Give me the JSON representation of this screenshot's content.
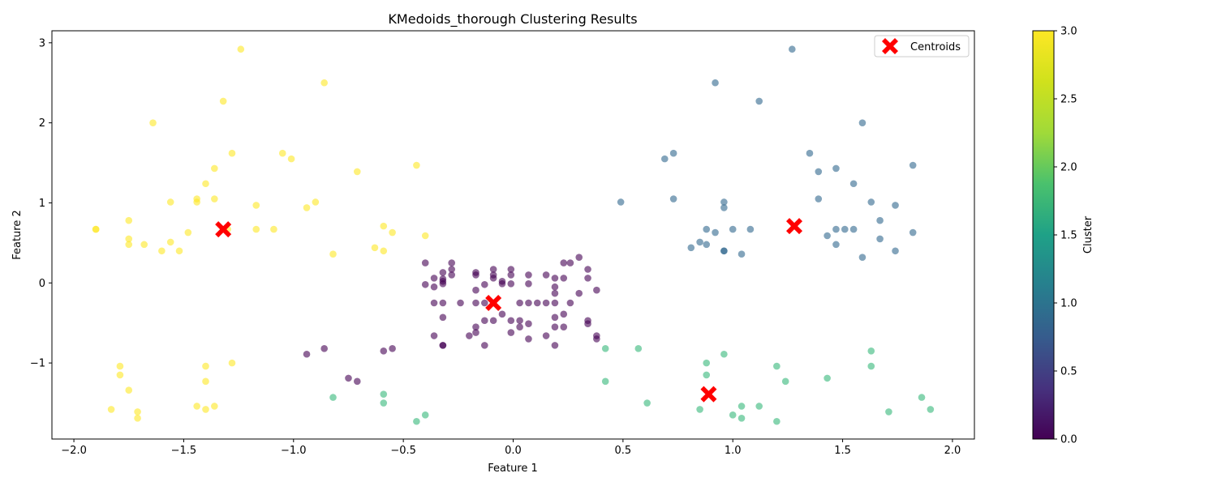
{
  "chart_data": {
    "type": "scatter",
    "title": "KMedoids_thorough Clustering Results",
    "xlabel": "Feature 1",
    "ylabel": "Feature 2",
    "xlim": [
      -2.1,
      2.1
    ],
    "ylim": [
      -1.95,
      3.15
    ],
    "xticks": [
      -2.0,
      -1.5,
      -1.0,
      -0.5,
      0.0,
      0.5,
      1.0,
      1.5,
      2.0
    ],
    "xtick_labels": [
      "−2.0",
      "−1.5",
      "−1.0",
      "−0.5",
      "0.0",
      "0.5",
      "1.0",
      "1.5",
      "2.0"
    ],
    "yticks": [
      -1,
      0,
      1,
      2,
      3
    ],
    "ytick_labels": [
      "−1",
      "0",
      "1",
      "2",
      "3"
    ],
    "grid": false,
    "legend": {
      "position": "top-right",
      "entries": [
        "Centroids"
      ]
    },
    "colorbar": {
      "label": "Cluster",
      "range": [
        0.0,
        3.0
      ],
      "ticks": [
        0.0,
        0.5,
        1.0,
        1.5,
        2.0,
        2.5,
        3.0
      ],
      "tick_labels": [
        "0.0",
        "0.5",
        "1.0",
        "1.5",
        "2.0",
        "2.5",
        "3.0"
      ]
    },
    "colors": {
      "cluster_0": "#440154",
      "cluster_1": "#31688e",
      "cluster_2": "#35b779",
      "cluster_3": "#fde725",
      "centroid": "#ff0000"
    },
    "series": [
      {
        "name": "Cluster 3",
        "cluster": 3,
        "points": [
          [
            -1.9,
            0.67
          ],
          [
            -1.9,
            0.67
          ],
          [
            -1.75,
            0.78
          ],
          [
            -1.75,
            0.55
          ],
          [
            -1.75,
            0.48
          ],
          [
            -1.68,
            0.48
          ],
          [
            -1.64,
            2.0
          ],
          [
            -1.6,
            0.4
          ],
          [
            -1.56,
            1.01
          ],
          [
            -1.56,
            0.51
          ],
          [
            -1.52,
            0.4
          ],
          [
            -1.48,
            0.63
          ],
          [
            -1.44,
            1.05
          ],
          [
            -1.44,
            1.01
          ],
          [
            -1.4,
            1.24
          ],
          [
            -1.36,
            1.43
          ],
          [
            -1.36,
            1.05
          ],
          [
            -1.32,
            2.27
          ],
          [
            -1.32,
            0.67
          ],
          [
            -1.3,
            0.67
          ],
          [
            -1.28,
            1.62
          ],
          [
            -1.24,
            2.92
          ],
          [
            -1.17,
            0.97
          ],
          [
            -1.17,
            0.67
          ],
          [
            -1.09,
            0.67
          ],
          [
            -1.05,
            1.62
          ],
          [
            -1.01,
            1.55
          ],
          [
            -0.94,
            0.94
          ],
          [
            -0.9,
            1.01
          ],
          [
            -0.86,
            2.5
          ],
          [
            -0.82,
            0.36
          ],
          [
            -0.71,
            1.39
          ],
          [
            -0.63,
            0.44
          ],
          [
            -0.59,
            0.71
          ],
          [
            -0.59,
            0.4
          ],
          [
            -0.55,
            0.63
          ],
          [
            -0.44,
            1.47
          ],
          [
            -0.4,
            0.59
          ],
          [
            -1.79,
            -1.04
          ],
          [
            -1.79,
            -1.15
          ],
          [
            -1.75,
            -1.34
          ],
          [
            -1.83,
            -1.58
          ],
          [
            -1.71,
            -1.61
          ],
          [
            -1.71,
            -1.69
          ],
          [
            -1.44,
            -1.54
          ],
          [
            -1.4,
            -1.58
          ],
          [
            -1.36,
            -1.54
          ],
          [
            -1.4,
            -1.04
          ],
          [
            -1.4,
            -1.23
          ],
          [
            -1.28,
            -1.0
          ]
        ]
      },
      {
        "name": "Cluster 1",
        "cluster": 1,
        "points": [
          [
            0.49,
            1.01
          ],
          [
            0.69,
            1.55
          ],
          [
            0.73,
            1.62
          ],
          [
            0.73,
            1.05
          ],
          [
            0.81,
            0.44
          ],
          [
            0.85,
            0.51
          ],
          [
            0.88,
            0.67
          ],
          [
            0.88,
            0.48
          ],
          [
            0.92,
            2.5
          ],
          [
            0.92,
            0.63
          ],
          [
            0.96,
            1.01
          ],
          [
            0.96,
            0.94
          ],
          [
            0.96,
            0.4
          ],
          [
            0.96,
            0.4
          ],
          [
            1.0,
            0.67
          ],
          [
            1.04,
            0.36
          ],
          [
            1.08,
            0.67
          ],
          [
            1.12,
            2.27
          ],
          [
            1.27,
            2.92
          ],
          [
            1.35,
            1.62
          ],
          [
            1.39,
            1.39
          ],
          [
            1.39,
            1.05
          ],
          [
            1.43,
            0.59
          ],
          [
            1.47,
            1.43
          ],
          [
            1.47,
            0.67
          ],
          [
            1.47,
            0.48
          ],
          [
            1.51,
            0.67
          ],
          [
            1.55,
            1.24
          ],
          [
            1.55,
            0.67
          ],
          [
            1.59,
            2.0
          ],
          [
            1.59,
            0.32
          ],
          [
            1.63,
            1.01
          ],
          [
            1.67,
            0.78
          ],
          [
            1.67,
            0.55
          ],
          [
            1.74,
            0.97
          ],
          [
            1.74,
            0.4
          ],
          [
            1.82,
            1.47
          ],
          [
            1.82,
            0.63
          ]
        ]
      },
      {
        "name": "Cluster 2",
        "cluster": 2,
        "points": [
          [
            -0.82,
            -1.43
          ],
          [
            -0.59,
            -1.39
          ],
          [
            -0.59,
            -1.5
          ],
          [
            -0.44,
            -1.73
          ],
          [
            -0.4,
            -1.65
          ],
          [
            0.42,
            -0.82
          ],
          [
            0.42,
            -1.23
          ],
          [
            0.57,
            -0.82
          ],
          [
            0.61,
            -1.5
          ],
          [
            0.85,
            -1.58
          ],
          [
            0.88,
            -1.0
          ],
          [
            0.88,
            -1.15
          ],
          [
            0.96,
            -0.89
          ],
          [
            1.0,
            -1.65
          ],
          [
            1.04,
            -1.54
          ],
          [
            1.04,
            -1.69
          ],
          [
            1.12,
            -1.54
          ],
          [
            1.2,
            -1.04
          ],
          [
            1.2,
            -1.73
          ],
          [
            1.24,
            -1.23
          ],
          [
            1.43,
            -1.19
          ],
          [
            1.63,
            -0.85
          ],
          [
            1.63,
            -1.04
          ],
          [
            1.71,
            -1.61
          ],
          [
            1.86,
            -1.43
          ],
          [
            1.9,
            -1.58
          ]
        ]
      },
      {
        "name": "Cluster 0",
        "cluster": 0,
        "points": [
          [
            -0.4,
            0.25
          ],
          [
            -0.4,
            -0.02
          ],
          [
            -0.36,
            0.06
          ],
          [
            -0.36,
            -0.05
          ],
          [
            -0.36,
            -0.25
          ],
          [
            -0.36,
            -0.66
          ],
          [
            -0.32,
            0.13
          ],
          [
            -0.32,
            0.05
          ],
          [
            -0.32,
            0.02
          ],
          [
            -0.32,
            -0.01
          ],
          [
            -0.32,
            -0.25
          ],
          [
            -0.32,
            -0.43
          ],
          [
            -0.32,
            -0.78
          ],
          [
            -0.32,
            -0.78
          ],
          [
            -0.28,
            0.25
          ],
          [
            -0.28,
            0.17
          ],
          [
            -0.28,
            0.1
          ],
          [
            -0.24,
            -0.25
          ],
          [
            -0.2,
            -0.66
          ],
          [
            -0.17,
            0.13
          ],
          [
            -0.17,
            0.1
          ],
          [
            -0.17,
            -0.09
          ],
          [
            -0.17,
            -0.25
          ],
          [
            -0.17,
            -0.55
          ],
          [
            -0.17,
            -0.62
          ],
          [
            -0.13,
            -0.02
          ],
          [
            -0.13,
            -0.25
          ],
          [
            -0.13,
            -0.47
          ],
          [
            -0.13,
            -0.78
          ],
          [
            -0.09,
            0.17
          ],
          [
            -0.09,
            0.1
          ],
          [
            -0.09,
            0.06
          ],
          [
            -0.09,
            -0.25
          ],
          [
            -0.09,
            -0.47
          ],
          [
            -0.05,
            0.02
          ],
          [
            -0.05,
            -0.01
          ],
          [
            -0.05,
            -0.39
          ],
          [
            -0.01,
            0.17
          ],
          [
            -0.01,
            0.1
          ],
          [
            -0.01,
            -0.01
          ],
          [
            -0.01,
            -0.47
          ],
          [
            -0.01,
            -0.62
          ],
          [
            0.03,
            -0.25
          ],
          [
            0.03,
            -0.47
          ],
          [
            0.03,
            -0.55
          ],
          [
            0.07,
            0.1
          ],
          [
            0.07,
            -0.01
          ],
          [
            0.07,
            -0.25
          ],
          [
            0.07,
            -0.51
          ],
          [
            0.07,
            -0.7
          ],
          [
            0.11,
            -0.25
          ],
          [
            0.15,
            0.1
          ],
          [
            0.15,
            -0.25
          ],
          [
            0.15,
            -0.66
          ],
          [
            0.19,
            0.06
          ],
          [
            0.19,
            -0.05
          ],
          [
            0.19,
            -0.13
          ],
          [
            0.19,
            -0.25
          ],
          [
            0.19,
            -0.43
          ],
          [
            0.19,
            -0.55
          ],
          [
            0.19,
            -0.78
          ],
          [
            0.23,
            0.25
          ],
          [
            0.23,
            0.06
          ],
          [
            0.23,
            -0.39
          ],
          [
            0.23,
            -0.55
          ],
          [
            0.26,
            0.25
          ],
          [
            0.26,
            -0.25
          ],
          [
            0.3,
            0.32
          ],
          [
            0.3,
            -0.13
          ],
          [
            0.34,
            0.17
          ],
          [
            0.34,
            0.06
          ],
          [
            0.34,
            -0.47
          ],
          [
            0.34,
            -0.51
          ],
          [
            0.38,
            -0.09
          ],
          [
            0.38,
            -0.66
          ],
          [
            0.38,
            -0.7
          ],
          [
            -0.94,
            -0.89
          ],
          [
            -0.86,
            -0.82
          ],
          [
            -0.75,
            -1.19
          ],
          [
            -0.71,
            -1.23
          ],
          [
            -0.59,
            -0.85
          ],
          [
            -0.55,
            -0.82
          ]
        ]
      }
    ],
    "centroids": [
      [
        -1.32,
        0.67
      ],
      [
        -0.09,
        -0.25
      ],
      [
        1.28,
        0.71
      ],
      [
        0.89,
        -1.39
      ]
    ]
  }
}
